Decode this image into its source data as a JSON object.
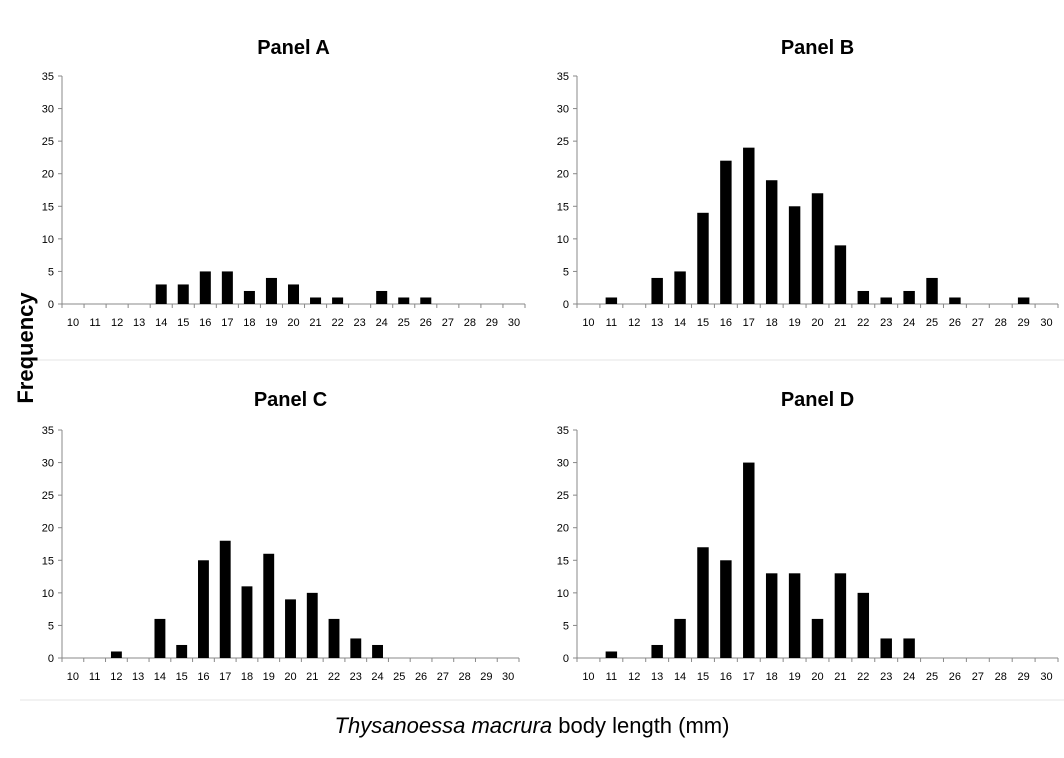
{
  "figure": {
    "ylabel": "Frequency",
    "xlabel_italic": "Thysanoessa macrura",
    "xlabel_rest": " body length (mm)"
  },
  "chart_data": [
    {
      "type": "bar",
      "title": "Panel A",
      "categories": [
        "10",
        "11",
        "12",
        "13",
        "14",
        "15",
        "16",
        "17",
        "18",
        "19",
        "20",
        "21",
        "22",
        "23",
        "24",
        "25",
        "26",
        "27",
        "28",
        "29",
        "30"
      ],
      "values": [
        0,
        0,
        0,
        0,
        3,
        3,
        5,
        5,
        2,
        4,
        3,
        1,
        1,
        0,
        2,
        1,
        1,
        0,
        0,
        0,
        0
      ],
      "ylim": [
        0,
        35
      ],
      "yticks": [
        0,
        5,
        10,
        15,
        20,
        25,
        30,
        35
      ],
      "grid": false
    },
    {
      "type": "bar",
      "title": "Panel B",
      "categories": [
        "10",
        "11",
        "12",
        "13",
        "14",
        "15",
        "16",
        "17",
        "18",
        "19",
        "20",
        "21",
        "22",
        "23",
        "24",
        "25",
        "26",
        "27",
        "28",
        "29",
        "30"
      ],
      "values": [
        0,
        1,
        0,
        4,
        5,
        14,
        22,
        24,
        19,
        15,
        17,
        9,
        2,
        1,
        2,
        4,
        1,
        0,
        0,
        1,
        0
      ],
      "ylim": [
        0,
        35
      ],
      "yticks": [
        0,
        5,
        10,
        15,
        20,
        25,
        30,
        35
      ],
      "grid": false
    },
    {
      "type": "bar",
      "title": "Panel C",
      "categories": [
        "10",
        "11",
        "12",
        "13",
        "14",
        "15",
        "16",
        "17",
        "18",
        "19",
        "20",
        "21",
        "22",
        "23",
        "24",
        "25",
        "26",
        "27",
        "28",
        "29",
        "30"
      ],
      "values": [
        0,
        0,
        1,
        0,
        6,
        2,
        15,
        18,
        11,
        16,
        9,
        10,
        6,
        3,
        2,
        0,
        0,
        0,
        0,
        0,
        0
      ],
      "ylim": [
        0,
        35
      ],
      "yticks": [
        0,
        5,
        10,
        15,
        20,
        25,
        30,
        35
      ],
      "grid": false
    },
    {
      "type": "bar",
      "title": "Panel D",
      "categories": [
        "10",
        "11",
        "12",
        "13",
        "14",
        "15",
        "16",
        "17",
        "18",
        "19",
        "20",
        "21",
        "22",
        "23",
        "24",
        "25",
        "26",
        "27",
        "28",
        "29",
        "30"
      ],
      "values": [
        0,
        1,
        0,
        2,
        6,
        17,
        15,
        30,
        13,
        13,
        6,
        13,
        10,
        3,
        3,
        0,
        0,
        0,
        0,
        0,
        0
      ],
      "ylim": [
        0,
        35
      ],
      "yticks": [
        0,
        5,
        10,
        15,
        20,
        25,
        30,
        35
      ],
      "grid": false
    }
  ]
}
